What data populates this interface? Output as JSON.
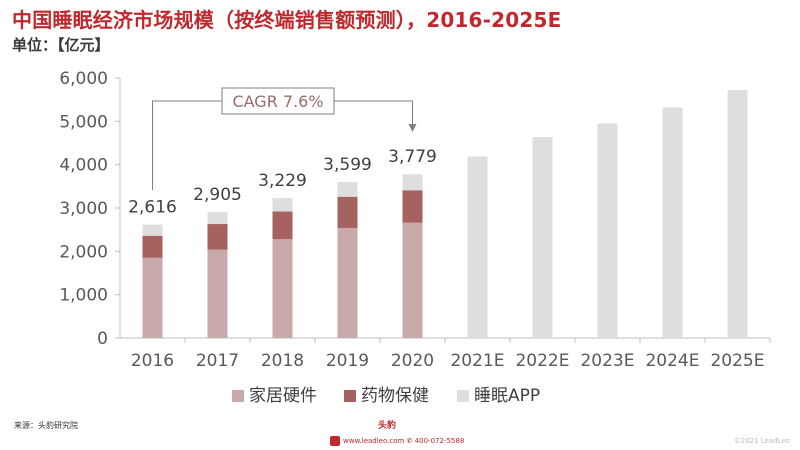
{
  "title": "中国睡眠经济市场规模（按终端销售额预测），2016-2025E",
  "unit": "单位：【亿元】",
  "source": "来源：头豹研究院",
  "footer": {
    "website": "www.leadleo.com",
    "phone": "400-072-5588",
    "copyright": "©2021 LeadLeo",
    "brand": "头豹"
  },
  "colors": {
    "title": "#c0282d",
    "home_furnishing": "#c7aaa9",
    "medicine_health": "#a6625f",
    "sleep_app": "#dedede",
    "forecast": "#dedede"
  },
  "chart_data": {
    "type": "bar",
    "stacked": true,
    "categories": [
      "2016",
      "2017",
      "2018",
      "2019",
      "2020",
      "2021E",
      "2022E",
      "2023E",
      "2024E",
      "2025E"
    ],
    "series": [
      {
        "name": "家居硬件",
        "values": [
          1850,
          2040,
          2280,
          2540,
          2660,
          null,
          null,
          null,
          null,
          null
        ]
      },
      {
        "name": "药物保健",
        "values": [
          510,
          590,
          640,
          720,
          750,
          null,
          null,
          null,
          null,
          null
        ]
      },
      {
        "name": "睡眠APP",
        "values": [
          256,
          275,
          309,
          339,
          369,
          4190,
          4640,
          4950,
          5320,
          5720
        ]
      }
    ],
    "totals": [
      "2,616",
      "2,905",
      "3,229",
      "3,599",
      "3,779"
    ],
    "ylim": [
      0,
      6000
    ],
    "yticks": [
      "0",
      "1,000",
      "2,000",
      "3,000",
      "4,000",
      "5,000",
      "6,000"
    ],
    "annotation": "CAGR 7.6%",
    "legend_position": "bottom",
    "grid": false
  }
}
